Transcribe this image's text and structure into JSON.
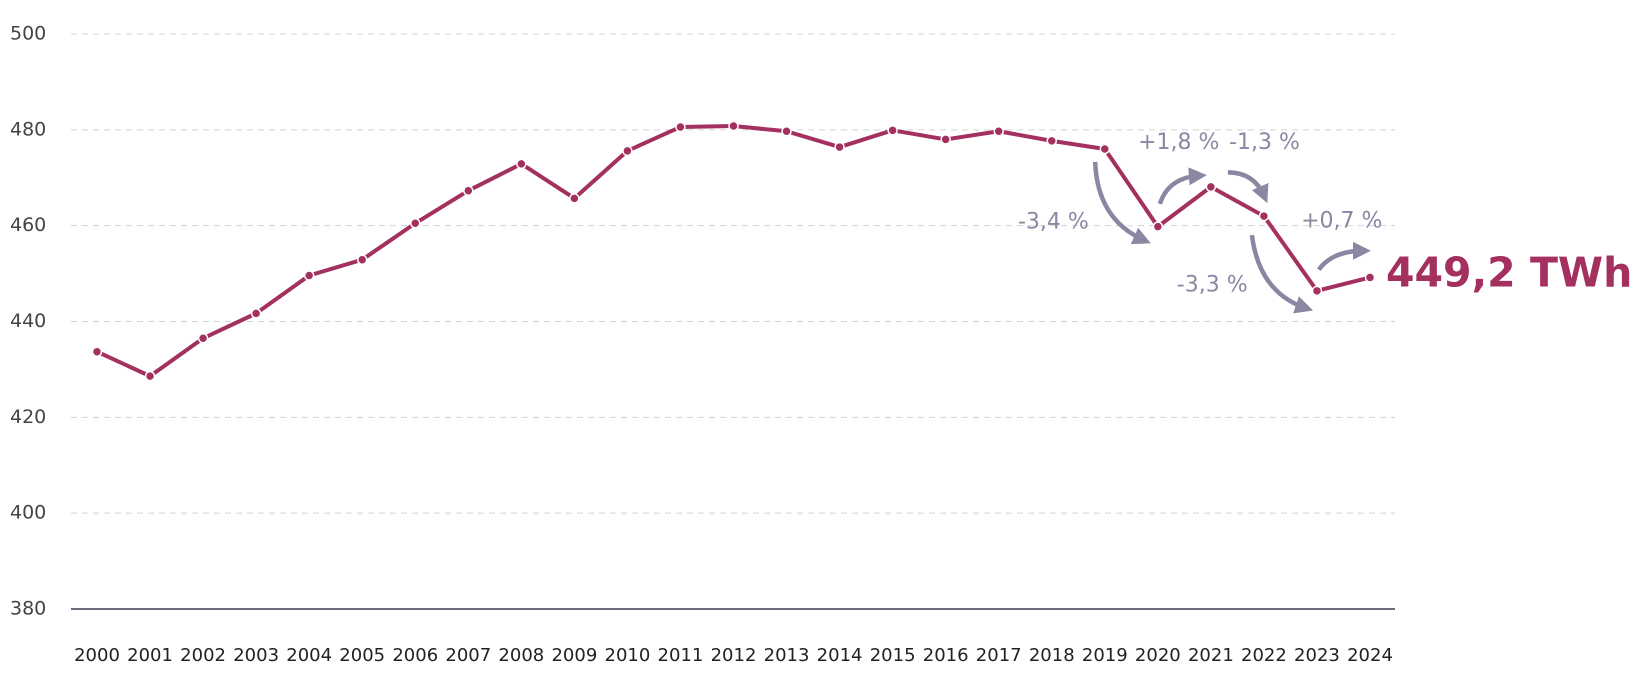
{
  "chart_data": {
    "type": "line",
    "x": [
      2000,
      2001,
      2002,
      2003,
      2004,
      2005,
      2006,
      2007,
      2008,
      2009,
      2010,
      2011,
      2012,
      2013,
      2014,
      2015,
      2016,
      2017,
      2018,
      2019,
      2020,
      2021,
      2022,
      2023,
      2024
    ],
    "series": [
      {
        "name": "TWh",
        "color": "#a3305e",
        "values": [
          433.7,
          428.6,
          436.5,
          441.7,
          449.6,
          452.9,
          460.5,
          467.3,
          472.9,
          465.7,
          475.6,
          480.6,
          480.8,
          479.7,
          476.4,
          479.9,
          478.0,
          479.7,
          477.7,
          476.0,
          459.8,
          468.1,
          462.0,
          446.4,
          449.2
        ],
        "value_labels": [
          null,
          null,
          null,
          null,
          null,
          null,
          null,
          null,
          null,
          null,
          null,
          null,
          null,
          null,
          null,
          null,
          null,
          null,
          null,
          null,
          null,
          null,
          null,
          null,
          "449,2 TWh"
        ]
      }
    ],
    "ylim": [
      380,
      500
    ],
    "yticks": [
      380,
      400,
      420,
      440,
      460,
      480,
      500
    ],
    "grid": true,
    "annotations": [
      "-3,4 %",
      "+1,8 %",
      "-1,3 %",
      "-3,3 %",
      "+0,7 %"
    ],
    "annotation_color": "#8a87a3"
  }
}
